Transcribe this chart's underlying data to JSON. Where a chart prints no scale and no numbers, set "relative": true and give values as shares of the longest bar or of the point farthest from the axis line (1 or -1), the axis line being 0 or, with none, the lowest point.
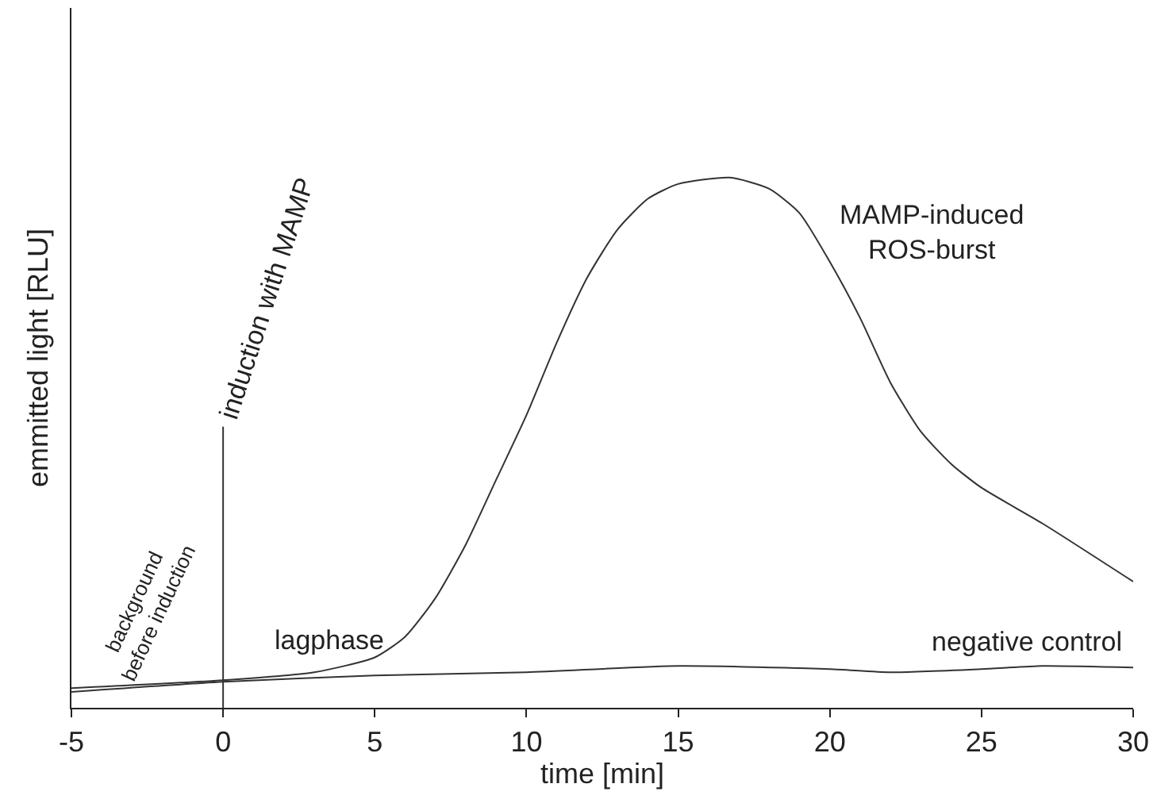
{
  "chart_data": {
    "type": "line",
    "relative": true,
    "xlabel": "time [min]",
    "ylabel": "emmitted light [RLU]",
    "xlim": [
      -5,
      30
    ],
    "xticks": [
      -5,
      0,
      5,
      10,
      15,
      20,
      25,
      30
    ],
    "marker": "none",
    "line_style": "solid",
    "series": [
      {
        "color": "#333333",
        "x": [
          -5,
          0,
          3,
          5,
          6,
          7,
          8,
          9,
          10,
          11,
          12,
          13,
          14,
          15,
          16.7,
          18,
          19,
          20,
          21,
          22,
          23,
          24,
          25,
          27,
          30
        ],
        "values": [
          0.037,
          0.052,
          0.067,
          0.095,
          0.134,
          0.207,
          0.308,
          0.43,
          0.552,
          0.689,
          0.811,
          0.902,
          0.96,
          0.988,
          1,
          0.979,
          0.933,
          0.841,
          0.735,
          0.613,
          0.521,
          0.46,
          0.415,
          0.348,
          0.238
        ]
      },
      {
        "color": "#333333",
        "x": [
          -5,
          0,
          5,
          10,
          15,
          20,
          22,
          25,
          27,
          30
        ],
        "values": [
          0.03,
          0.049,
          0.061,
          0.067,
          0.079,
          0.073,
          0.067,
          0.073,
          0.079,
          0.076
        ]
      }
    ],
    "ref_lines": [
      {
        "axis": "x",
        "value": 0,
        "label": "induction with MAMP",
        "color": "#333333"
      }
    ],
    "annotations": [
      {
        "text": "background\nbefore induction",
        "x": -2.5,
        "y": 0.03
      },
      {
        "text": "lagphase",
        "x": 3.5,
        "y": 0.08
      },
      "MAMP-induced\nROS-burst",
      {
        "text": "negative control",
        "x": 26.5,
        "y": 0.079
      }
    ]
  }
}
